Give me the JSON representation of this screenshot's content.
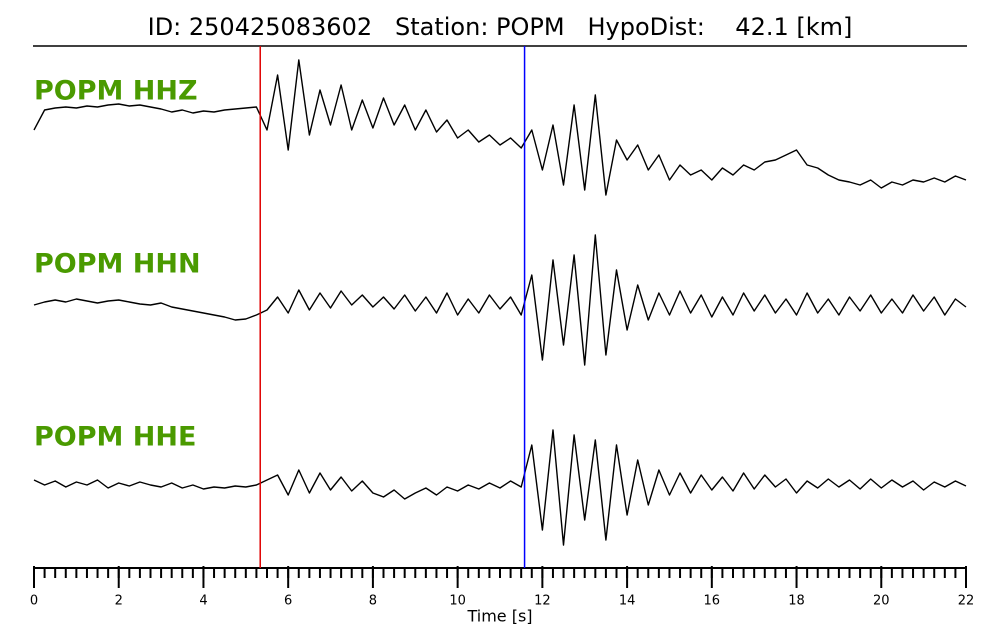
{
  "chart_data": {
    "type": "line",
    "title": "ID: 250425083602   Station: POPM   HypoDist:    42.1 [km]",
    "xlabel": "Time [s]",
    "xlim": [
      0,
      22
    ],
    "xticks": [
      0,
      2,
      4,
      6,
      8,
      10,
      12,
      14,
      16,
      18,
      20,
      22
    ],
    "minor_tick_step": 0.25,
    "label_color": "#4a9a00",
    "picks": [
      {
        "time": 5.34,
        "color": "#e00000"
      },
      {
        "time": 11.58,
        "color": "#0000ff"
      }
    ],
    "x": [
      0,
      0.25,
      0.5,
      0.75,
      1,
      1.25,
      1.5,
      1.75,
      2,
      2.25,
      2.5,
      2.75,
      3,
      3.25,
      3.5,
      3.75,
      4,
      4.25,
      4.5,
      4.75,
      5,
      5.25,
      5.5,
      5.75,
      6,
      6.25,
      6.5,
      6.75,
      7,
      7.25,
      7.5,
      7.75,
      8,
      8.25,
      8.5,
      8.75,
      9,
      9.25,
      9.5,
      9.75,
      10,
      10.25,
      10.5,
      10.75,
      11,
      11.25,
      11.5,
      11.75,
      12,
      12.25,
      12.5,
      12.75,
      13,
      13.25,
      13.5,
      13.75,
      14,
      14.25,
      14.5,
      14.75,
      15,
      15.25,
      15.5,
      15.75,
      16,
      16.25,
      16.5,
      16.75,
      17,
      17.25,
      17.5,
      17.75,
      18,
      18.25,
      18.5,
      18.75,
      19,
      19.25,
      19.5,
      19.75,
      20,
      20.25,
      20.5,
      20.75,
      21,
      21.25,
      21.5,
      21.75,
      22
    ],
    "series": [
      {
        "name": "POPM HHZ",
        "color": "#000000",
        "values": [
          -20,
          0,
          2,
          3,
          2,
          4,
          3,
          5,
          6,
          4,
          5,
          3,
          1,
          -2,
          0,
          -3,
          -1,
          -2,
          0,
          1,
          2,
          3,
          -20,
          35,
          -40,
          50,
          -25,
          20,
          -15,
          25,
          -20,
          10,
          -18,
          12,
          -15,
          5,
          -20,
          0,
          -22,
          -10,
          -28,
          -20,
          -32,
          -25,
          -35,
          -28,
          -38,
          -20,
          -60,
          -15,
          -75,
          5,
          -80,
          15,
          -85,
          -30,
          -50,
          -35,
          -60,
          -45,
          -70,
          -55,
          -65,
          -60,
          -70,
          -58,
          -65,
          -55,
          -60,
          -52,
          -50,
          -45,
          -40,
          -55,
          -58,
          -65,
          -70,
          -72,
          -75,
          -70,
          -78,
          -72,
          -75,
          -70,
          -72,
          -68,
          -72,
          -66,
          -70
        ]
      },
      {
        "name": "POPM HHN",
        "color": "#000000",
        "values": [
          0,
          3,
          5,
          3,
          6,
          4,
          2,
          4,
          5,
          3,
          1,
          0,
          2,
          -2,
          -4,
          -6,
          -8,
          -10,
          -12,
          -15,
          -14,
          -10,
          -5,
          8,
          -8,
          15,
          -5,
          12,
          -3,
          14,
          0,
          10,
          -2,
          8,
          -4,
          10,
          -6,
          8,
          -8,
          12,
          -10,
          6,
          -8,
          10,
          -4,
          8,
          -10,
          30,
          -55,
          45,
          -40,
          50,
          -60,
          70,
          -50,
          35,
          -25,
          20,
          -15,
          12,
          -10,
          14,
          -8,
          10,
          -12,
          8,
          -10,
          12,
          -6,
          10,
          -8,
          6,
          -10,
          12,
          -8,
          6,
          -10,
          8,
          -6,
          10,
          -8,
          6,
          -8,
          10,
          -6,
          8,
          -10,
          6,
          -2
        ]
      },
      {
        "name": "POPM HHE",
        "color": "#000000",
        "values": [
          5,
          0,
          4,
          -2,
          3,
          0,
          5,
          -3,
          2,
          -1,
          3,
          0,
          -2,
          2,
          -3,
          0,
          -4,
          -2,
          -3,
          -1,
          -2,
          0,
          5,
          10,
          -10,
          15,
          -8,
          12,
          -5,
          8,
          -6,
          4,
          -8,
          -12,
          -5,
          -14,
          -8,
          -3,
          -10,
          -2,
          -6,
          0,
          -4,
          2,
          -3,
          4,
          -2,
          40,
          -45,
          55,
          -60,
          50,
          -35,
          45,
          -55,
          40,
          -30,
          25,
          -20,
          15,
          -10,
          12,
          -8,
          10,
          -5,
          8,
          -6,
          12,
          -4,
          10,
          -2,
          6,
          -8,
          4,
          -3,
          6,
          -2,
          5,
          -4,
          6,
          -3,
          5,
          -2,
          4,
          -5,
          3,
          -2,
          4,
          -1
        ]
      }
    ]
  }
}
